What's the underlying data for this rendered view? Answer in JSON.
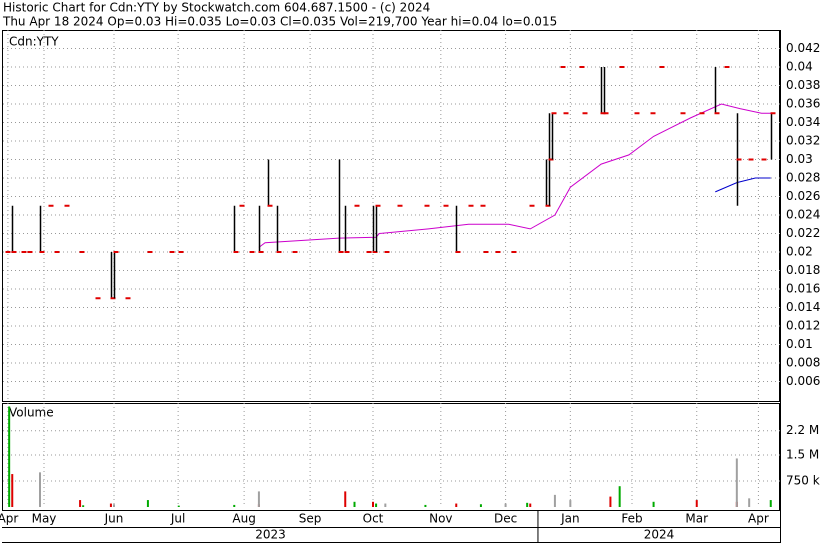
{
  "chart_data": {
    "type": "ohlc",
    "title": "Historic Chart for Cdn:YTY by Stockwatch.com 604.687.1500 - (c) 2024",
    "subtitle": "Thu Apr 18 2024  Op=0.03  Hi=0.035  Lo=0.03  Cl=0.035  Vol=219,700  Year hi=0.04  lo=0.015",
    "symbol_label": "Cdn:YTY",
    "bar_color": "#000000",
    "close_color": "#e00000",
    "x": [
      1,
      3,
      6,
      8,
      12,
      15,
      17,
      20,
      25,
      30,
      35,
      36,
      40,
      47,
      54,
      57,
      75,
      77,
      80,
      83,
      86,
      89,
      94,
      109,
      111,
      114,
      118,
      120,
      121,
      124,
      128,
      137,
      143,
      147,
      151,
      155,
      156,
      160,
      165,
      171,
      176,
      177,
      178,
      181,
      182,
      187,
      188,
      194,
      195,
      200,
      205,
      210,
      213,
      220,
      226,
      231,
      234,
      238,
      242,
      246,
      249
    ],
    "high": [
      0.02,
      0.025,
      0.02,
      0.02,
      0.025,
      0.025,
      0.02,
      0.025,
      0.02,
      0.015,
      0.02,
      0.02,
      0.015,
      0.02,
      0.02,
      0.02,
      0.025,
      0.025,
      0.02,
      0.025,
      0.03,
      0.025,
      0.02,
      0.03,
      0.025,
      0.025,
      0.02,
      0.025,
      0.025,
      0.02,
      0.025,
      0.025,
      0.025,
      0.025,
      0.025,
      0.025,
      0.02,
      0.02,
      0.02,
      0.025,
      0.03,
      0.035,
      0.035,
      0.04,
      0.035,
      0.04,
      0.035,
      0.04,
      0.04,
      0.04,
      0.035,
      0.035,
      0.04,
      0.035,
      0.035,
      0.04,
      0.04,
      0.035,
      0.03,
      0.03,
      0.035
    ],
    "low": [
      0.02,
      0.02,
      0.02,
      0.02,
      0.02,
      0.025,
      0.02,
      0.025,
      0.02,
      0.015,
      0.015,
      0.015,
      0.015,
      0.02,
      0.02,
      0.02,
      0.02,
      0.025,
      0.02,
      0.02,
      0.025,
      0.02,
      0.02,
      0.02,
      0.02,
      0.025,
      0.02,
      0.02,
      0.02,
      0.02,
      0.025,
      0.025,
      0.025,
      0.02,
      0.025,
      0.025,
      0.02,
      0.02,
      0.02,
      0.025,
      0.025,
      0.025,
      0.03,
      0.04,
      0.035,
      0.04,
      0.035,
      0.035,
      0.035,
      0.04,
      0.035,
      0.035,
      0.04,
      0.035,
      0.035,
      0.035,
      0.04,
      0.025,
      0.03,
      0.03,
      0.03
    ],
    "close": [
      0.02,
      0.02,
      0.02,
      0.02,
      0.02,
      0.025,
      0.02,
      0.025,
      0.02,
      0.015,
      0.015,
      0.02,
      0.015,
      0.02,
      0.02,
      0.02,
      0.02,
      0.025,
      0.02,
      0.02,
      0.025,
      0.02,
      0.02,
      0.02,
      0.02,
      0.025,
      0.02,
      0.02,
      0.025,
      0.02,
      0.025,
      0.025,
      0.025,
      0.02,
      0.025,
      0.025,
      0.02,
      0.02,
      0.02,
      0.025,
      0.025,
      0.03,
      0.035,
      0.04,
      0.035,
      0.04,
      0.035,
      0.035,
      0.035,
      0.04,
      0.035,
      0.035,
      0.04,
      0.035,
      0.035,
      0.035,
      0.04,
      0.03,
      0.03,
      0.03,
      0.035
    ],
    "moving_averages": [
      {
        "color": "#cc00cc",
        "x": [
          83,
          85,
          109,
          121,
          122,
          138,
          151,
          164,
          171,
          179,
          184,
          194,
          203,
          211,
          223,
          233,
          239,
          246,
          249
        ],
        "values": [
          0.0205,
          0.021,
          0.0215,
          0.0216,
          0.022,
          0.0225,
          0.023,
          0.023,
          0.0225,
          0.024,
          0.027,
          0.0295,
          0.0305,
          0.0325,
          0.0345,
          0.036,
          0.0355,
          0.035,
          0.035
        ]
      },
      {
        "color": "#0000cc",
        "x": [
          231,
          238,
          244,
          249
        ],
        "values": [
          0.0265,
          0.0275,
          0.028,
          0.028
        ]
      }
    ],
    "xlim": [
      0,
      252
    ],
    "ylim": [
      0.004,
      0.044
    ],
    "yticks": [
      0.006,
      0.008,
      0.01,
      0.012,
      0.014,
      0.016,
      0.018,
      0.02,
      0.022,
      0.024,
      0.026,
      0.028,
      0.03,
      0.032,
      0.034,
      0.036,
      0.038,
      0.04,
      0.042
    ],
    "xticks": [
      {
        "value": 1.6,
        "label": "Apr"
      },
      {
        "value": 13.3,
        "label": "May"
      },
      {
        "value": 36,
        "label": "Jun"
      },
      {
        "value": 56.8,
        "label": "Jul"
      },
      {
        "value": 78.2,
        "label": "Aug"
      },
      {
        "value": 99.6,
        "label": "Sep"
      },
      {
        "value": 120,
        "label": "Oct"
      },
      {
        "value": 142,
        "label": "Nov"
      },
      {
        "value": 163,
        "label": "Dec"
      },
      {
        "value": 184,
        "label": "Jan"
      },
      {
        "value": 204,
        "label": "Feb"
      },
      {
        "value": 225,
        "label": "Mar"
      },
      {
        "value": 245,
        "label": "Apr"
      }
    ],
    "years": [
      {
        "label": "2023",
        "from_tick": 0
      },
      {
        "label": "2024",
        "from_tick": 9
      }
    ],
    "grid": true,
    "volume": {
      "label": "Volume",
      "ylim": [
        0,
        3000000
      ],
      "yticks": [
        {
          "value": 2200000,
          "label": "2.2 M"
        },
        {
          "value": 1500000,
          "label": "1.5 M"
        },
        {
          "value": 750000,
          "label": "750 k"
        }
      ],
      "series": [
        {
          "color": "#00aa00",
          "x": [
            2,
            26,
            47,
            57,
            75,
            114,
            121,
            137,
            155,
            170,
            200,
            211,
            249
          ],
          "values": [
            2900000,
            50000,
            200000,
            40000,
            60000,
            150000,
            100000,
            60000,
            80000,
            120000,
            600000,
            150000,
            200000
          ]
        },
        {
          "color": "#dd0000",
          "x": [
            3,
            25,
            35,
            83,
            111,
            120,
            147,
            171,
            197,
            225,
            238
          ],
          "values": [
            950000,
            200000,
            100000,
            80000,
            450000,
            150000,
            100000,
            100000,
            300000,
            200000,
            150000
          ]
        },
        {
          "color": "#a0a0a0",
          "x": [
            12,
            36,
            83,
            124,
            163,
            179,
            184,
            238,
            242
          ],
          "values": [
            1000000,
            80000,
            450000,
            100000,
            100000,
            350000,
            200000,
            1400000,
            250000
          ]
        }
      ]
    }
  }
}
